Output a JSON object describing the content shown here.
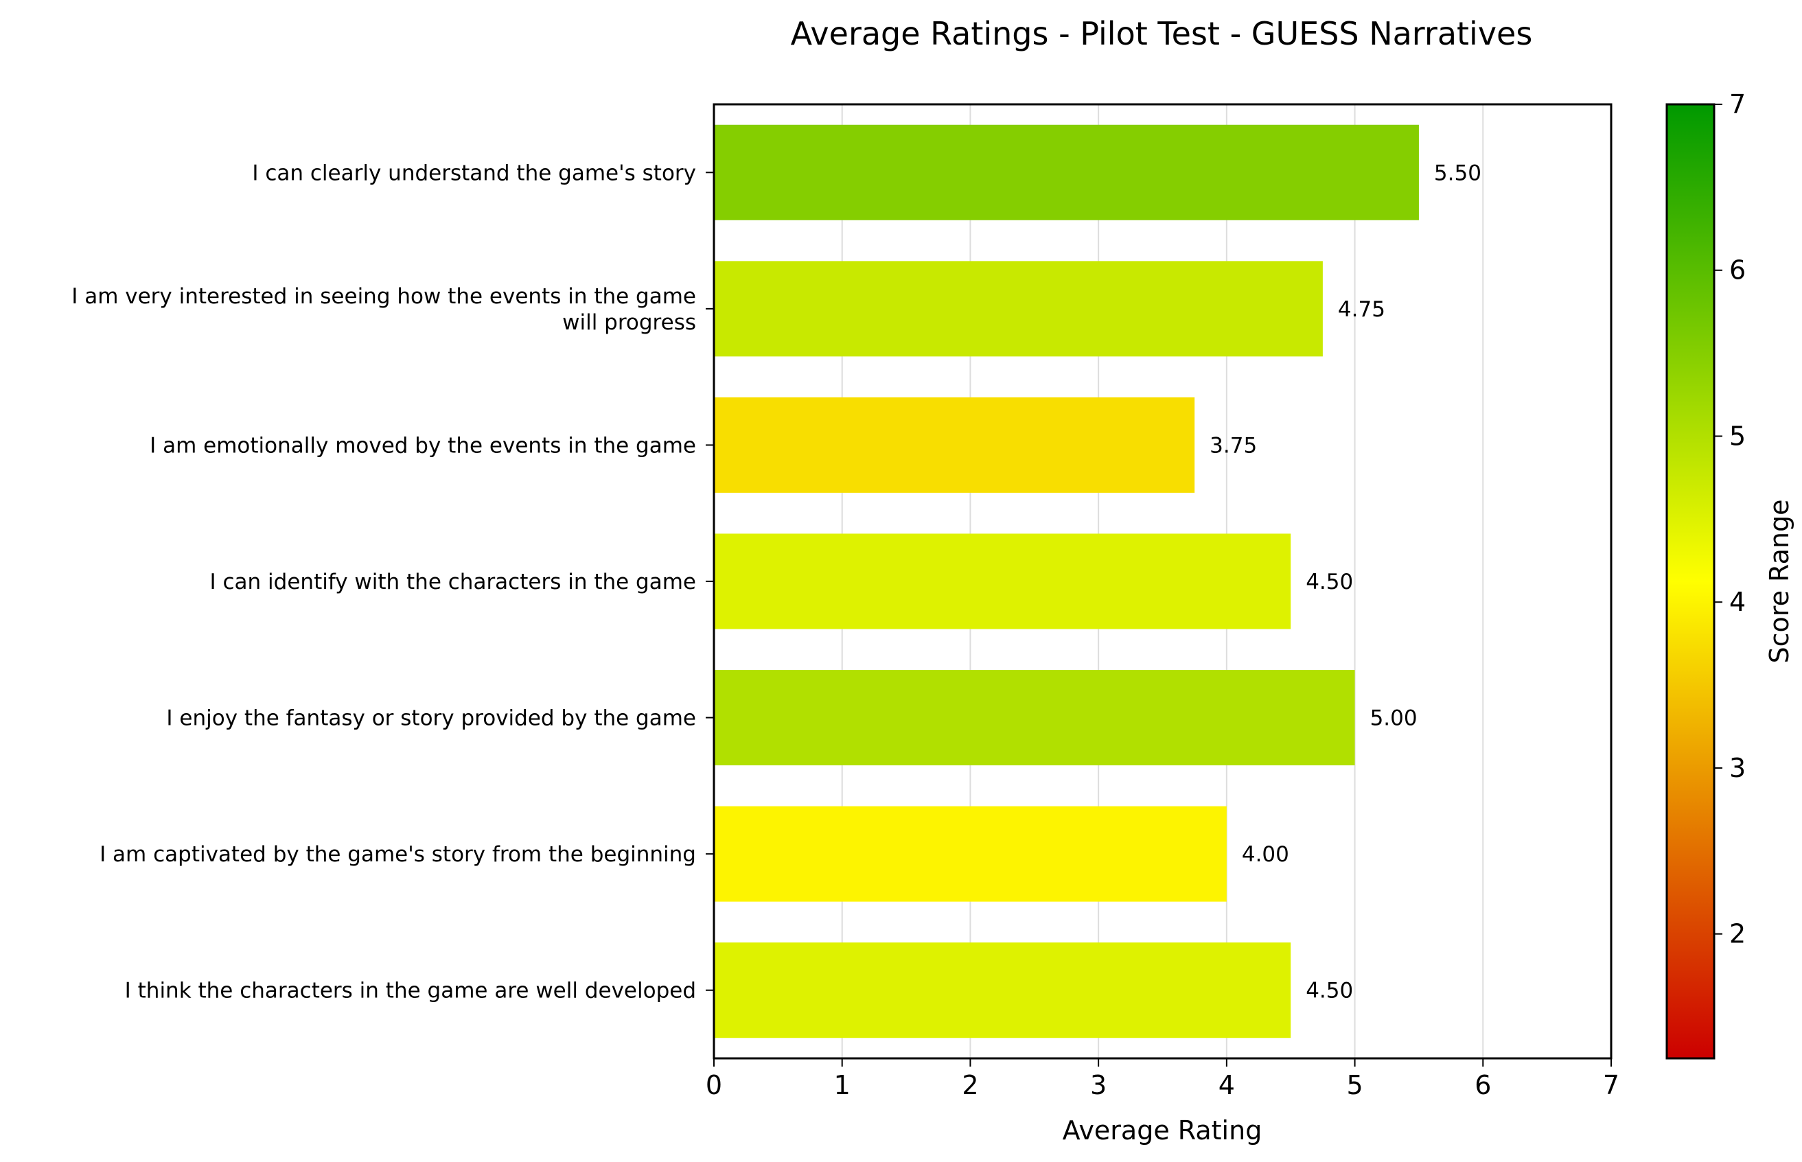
{
  "chart_data": {
    "type": "bar",
    "orientation": "horizontal",
    "title": "Average Ratings - Pilot Test - GUESS Narratives",
    "xlabel": "Average Rating",
    "ylabel": "",
    "xlim": [
      0,
      7
    ],
    "x_ticks": [
      "0",
      "1",
      "2",
      "3",
      "4",
      "5",
      "6",
      "7"
    ],
    "grid": "vertical",
    "categories": [
      [
        "I can clearly understand the game's story"
      ],
      [
        "I am very interested in seeing how the events in the game",
        "will progress"
      ],
      [
        "I am emotionally moved by the events in the game"
      ],
      [
        "I can identify with the characters in the game"
      ],
      [
        "I enjoy the fantasy or story provided by the game"
      ],
      [
        "I am captivated by the game's story from the beginning"
      ],
      [
        "I think the characters in the game are well developed"
      ]
    ],
    "values": [
      5.5,
      4.75,
      3.75,
      4.5,
      5.0,
      4.0,
      4.5
    ],
    "value_labels": [
      "5.50",
      "4.75",
      "3.75",
      "4.50",
      "5.00",
      "4.00",
      "4.50"
    ],
    "colorbar": {
      "label": "Score Range",
      "range": [
        1.25,
        7
      ],
      "ticks": [
        "2",
        "3",
        "4",
        "5",
        "6",
        "7"
      ],
      "colors": {
        "low": "#cc0000",
        "mid": "#ffff00",
        "high": "#009900"
      }
    }
  }
}
